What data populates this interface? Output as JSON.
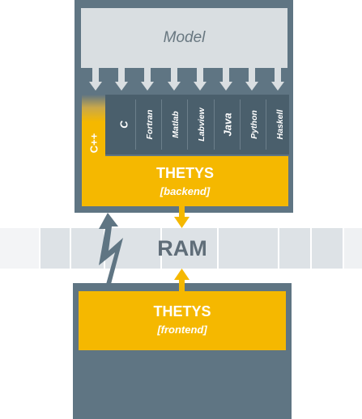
{
  "model": {
    "label": "Model"
  },
  "ram": {
    "label": "RAM"
  },
  "languages": [
    {
      "label": "C",
      "size": "big"
    },
    {
      "label": "Fortran",
      "size": "small"
    },
    {
      "label": "Matlab",
      "size": "small"
    },
    {
      "label": "Labview",
      "size": "small"
    },
    {
      "label": "Java",
      "size": "big"
    },
    {
      "label": "Python",
      "size": "small"
    },
    {
      "label": "Haskell",
      "size": "small"
    }
  ],
  "cpp": {
    "label": "C++"
  },
  "backend": {
    "title": "THETYS",
    "subtitle": "[backend]"
  },
  "frontend": {
    "title": "THETYS",
    "subtitle": "[frontend]"
  },
  "colors": {
    "panel": "#5f7583",
    "panel_dark": "#4a5f6c",
    "light": "#d9dee1",
    "accent": "#f5b800",
    "ram": "#dde2e6"
  }
}
